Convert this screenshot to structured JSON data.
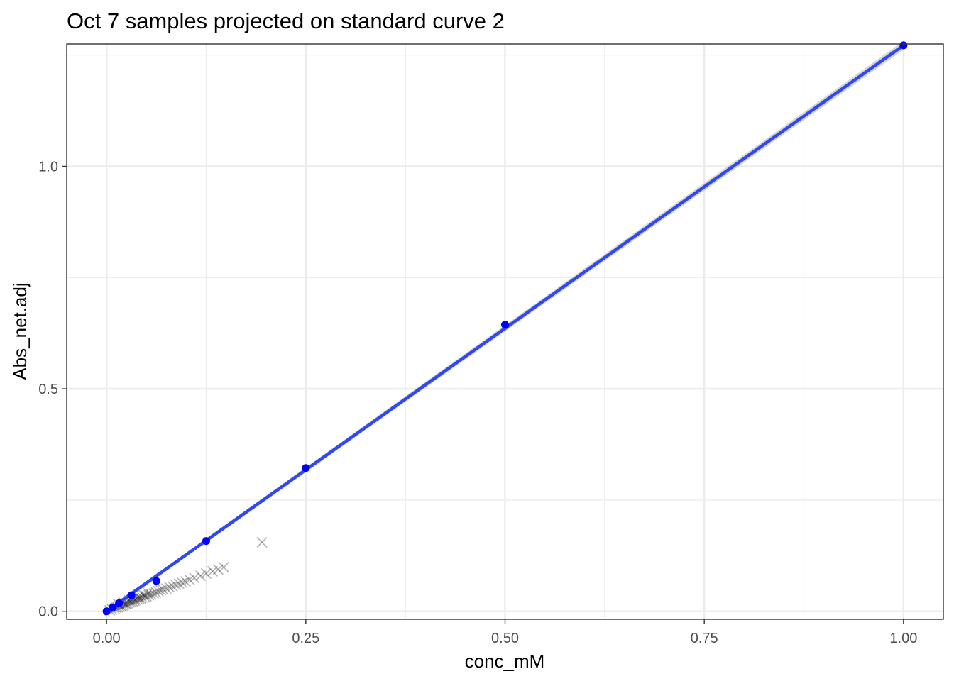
{
  "chart_data": {
    "type": "scatter",
    "title": "Oct 7 samples projected on standard curve 2",
    "xlabel": "conc_mM",
    "ylabel": "Abs_net.adj",
    "xlim": [
      -0.05,
      1.05
    ],
    "ylim": [
      -0.018,
      1.275
    ],
    "x_ticks": [
      0.0,
      0.25,
      0.5,
      0.75,
      1.0
    ],
    "x_tick_labels": [
      "0.00",
      "0.25",
      "0.50",
      "0.75",
      "1.00"
    ],
    "y_ticks": [
      0.0,
      0.5,
      1.0
    ],
    "y_tick_labels": [
      "0.0",
      "0.5",
      "1.0"
    ],
    "grid": true,
    "legend": "none",
    "colors": {
      "standards": "#0000ff",
      "fit_line": "#3047f5",
      "fit_band": "#b3b3b3",
      "samples": "#000000",
      "grid": "#ebebeb",
      "panel_border": "#333333"
    },
    "fit_line": {
      "x": [
        0.0,
        1.0
      ],
      "y": [
        0.0,
        1.272
      ]
    },
    "series": [
      {
        "marker": "point",
        "x": [
          0.0,
          0.0078,
          0.0156,
          0.03125,
          0.0625,
          0.125,
          0.25,
          0.5,
          1.0
        ],
        "y": [
          0.0,
          0.009,
          0.018,
          0.036,
          0.068,
          0.158,
          0.322,
          0.644,
          1.272
        ]
      },
      {
        "marker": "x",
        "x": [
          0.004,
          0.007,
          0.01,
          0.012,
          0.014,
          0.016,
          0.018,
          0.02,
          0.022,
          0.024,
          0.025,
          0.027,
          0.029,
          0.031,
          0.033,
          0.035,
          0.037,
          0.039,
          0.041,
          0.043,
          0.045,
          0.048,
          0.05,
          0.053,
          0.056,
          0.059,
          0.062,
          0.065,
          0.068,
          0.071,
          0.075,
          0.079,
          0.083,
          0.087,
          0.091,
          0.095,
          0.099,
          0.104,
          0.11,
          0.118,
          0.125,
          0.133,
          0.14,
          0.147,
          0.195,
          0.015,
          0.021,
          0.028,
          0.034,
          0.04,
          0.046,
          0.052
        ],
        "y": [
          0.002,
          0.004,
          0.006,
          0.008,
          0.009,
          0.011,
          0.012,
          0.013,
          0.015,
          0.016,
          0.017,
          0.018,
          0.02,
          0.021,
          0.022,
          0.024,
          0.025,
          0.027,
          0.028,
          0.029,
          0.031,
          0.033,
          0.034,
          0.036,
          0.038,
          0.04,
          0.042,
          0.045,
          0.047,
          0.049,
          0.051,
          0.054,
          0.056,
          0.059,
          0.062,
          0.064,
          0.067,
          0.071,
          0.075,
          0.08,
          0.085,
          0.09,
          0.094,
          0.099,
          0.155,
          0.016,
          0.02,
          0.025,
          0.029,
          0.033,
          0.037,
          0.041
        ]
      }
    ]
  }
}
